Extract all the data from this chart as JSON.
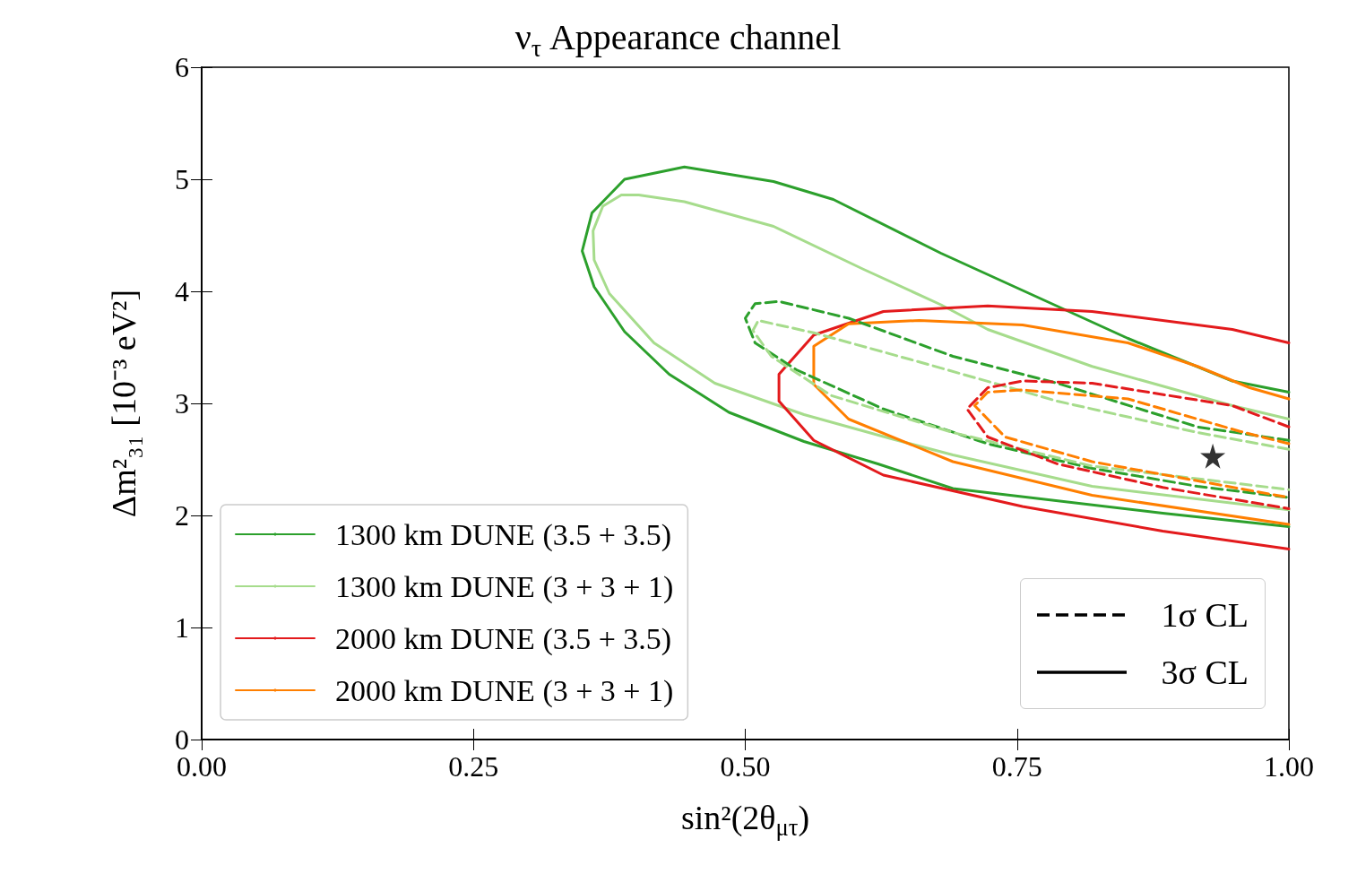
{
  "chart_data": {
    "type": "line",
    "title": "ν$_{τ}$ Appearance channel",
    "xlabel": "sin²(2θ$_{μτ}$)",
    "ylabel": "Δm²₃₁ [10⁻³ eV²]",
    "xlim": [
      0,
      1
    ],
    "ylim": [
      0,
      6
    ],
    "xticks": [
      {
        "value": 0,
        "label": "0.00"
      },
      {
        "value": 0.25,
        "label": "0.25"
      },
      {
        "value": 0.5,
        "label": "0.50"
      },
      {
        "value": 0.75,
        "label": "0.75"
      },
      {
        "value": 1,
        "label": "1.00"
      }
    ],
    "yticks": [
      0,
      1,
      2,
      3,
      4,
      5,
      6
    ],
    "grid": false,
    "legend": "bottom left",
    "marker": "none",
    "annotations": [
      "1σ CL",
      "3σ CL"
    ],
    "series": [
      {
        "name": "1300 km DUNE (3.5 + 3.5)",
        "color": "#2ca02c",
        "line_style": "solid",
        "x": [
          1.0,
          0.948,
          0.852,
          0.68,
          0.581,
          0.526,
          0.444,
          0.389,
          0.359,
          0.35,
          0.361,
          0.389,
          0.43,
          0.485,
          0.554,
          0.622,
          0.691,
          0.884,
          1.0
        ],
        "values": [
          3.1,
          3.2,
          3.58,
          4.34,
          4.82,
          4.98,
          5.11,
          5.0,
          4.7,
          4.36,
          4.04,
          3.64,
          3.26,
          2.92,
          2.66,
          2.46,
          2.24,
          2.02,
          1.9
        ]
      },
      {
        "name": "1300 km DUNE (3 + 3 + 1)",
        "color": "#a6dc8c",
        "line_style": "solid",
        "x": [
          1.0,
          0.948,
          0.819,
          0.723,
          0.68,
          0.608,
          0.526,
          0.444,
          0.402,
          0.386,
          0.369,
          0.36,
          0.361,
          0.375,
          0.416,
          0.472,
          0.554,
          0.636,
          0.691,
          0.819,
          1.0
        ],
        "values": [
          2.86,
          2.98,
          3.33,
          3.66,
          3.88,
          4.2,
          4.58,
          4.8,
          4.86,
          4.86,
          4.76,
          4.54,
          4.28,
          3.98,
          3.54,
          3.18,
          2.9,
          2.68,
          2.54,
          2.26,
          2.05
        ]
      },
      {
        "name": "2000 km DUNE (3.5 + 3.5)",
        "color": "#e31a1c",
        "line_style": "solid",
        "x": [
          1.0,
          0.948,
          0.819,
          0.723,
          0.627,
          0.563,
          0.531,
          0.531,
          0.563,
          0.627,
          0.755,
          0.884,
          1.0
        ],
        "values": [
          3.54,
          3.66,
          3.82,
          3.87,
          3.82,
          3.61,
          3.26,
          3.02,
          2.67,
          2.36,
          2.08,
          1.86,
          1.7
        ]
      },
      {
        "name": "2000 km DUNE (3 + 3 + 1)",
        "color": "#ff7f00",
        "line_style": "solid",
        "x": [
          1.0,
          0.964,
          0.916,
          0.852,
          0.755,
          0.66,
          0.595,
          0.563,
          0.563,
          0.595,
          0.691,
          0.819,
          1.0
        ],
        "values": [
          3.04,
          3.14,
          3.33,
          3.54,
          3.7,
          3.74,
          3.71,
          3.51,
          3.17,
          2.86,
          2.48,
          2.18,
          1.92
        ]
      },
      {
        "color": "#2ca02c",
        "line_style": "dashed",
        "x": [
          1.0,
          0.916,
          0.787,
          0.691,
          0.595,
          0.531,
          0.509,
          0.5,
          0.509,
          0.547,
          0.627,
          0.723,
          0.819,
          0.916,
          1.0
        ],
        "values": [
          2.67,
          2.79,
          3.18,
          3.42,
          3.76,
          3.91,
          3.89,
          3.76,
          3.54,
          3.3,
          2.95,
          2.64,
          2.42,
          2.26,
          2.16
        ]
      },
      {
        "color": "#a6dc8c",
        "line_style": "dashed",
        "x": [
          1.0,
          0.916,
          0.787,
          0.66,
          0.563,
          0.512,
          0.507,
          0.524,
          0.579,
          0.691,
          0.819,
          1.0
        ],
        "values": [
          2.59,
          2.74,
          3.02,
          3.37,
          3.63,
          3.74,
          3.65,
          3.42,
          3.07,
          2.74,
          2.44,
          2.23
        ]
      },
      {
        "color": "#e31a1c",
        "line_style": "dashed",
        "x": [
          1.0,
          0.948,
          0.819,
          0.755,
          0.723,
          0.704,
          0.723,
          0.787,
          0.884,
          1.0
        ],
        "values": [
          2.79,
          2.98,
          3.18,
          3.2,
          3.14,
          2.95,
          2.7,
          2.46,
          2.25,
          2.06
        ]
      },
      {
        "color": "#ff7f00",
        "line_style": "dashed",
        "x": [
          1.0,
          0.955,
          0.852,
          0.755,
          0.723,
          0.711,
          0.739,
          0.819,
          1.0
        ],
        "values": [
          2.64,
          2.75,
          3.04,
          3.12,
          3.1,
          2.98,
          2.7,
          2.48,
          2.16
        ]
      },
      {
        "type": "scatter",
        "color": "#000000",
        "marker": "star",
        "x": [
          0.93
        ],
        "values": [
          2.53
        ]
      }
    ]
  }
}
